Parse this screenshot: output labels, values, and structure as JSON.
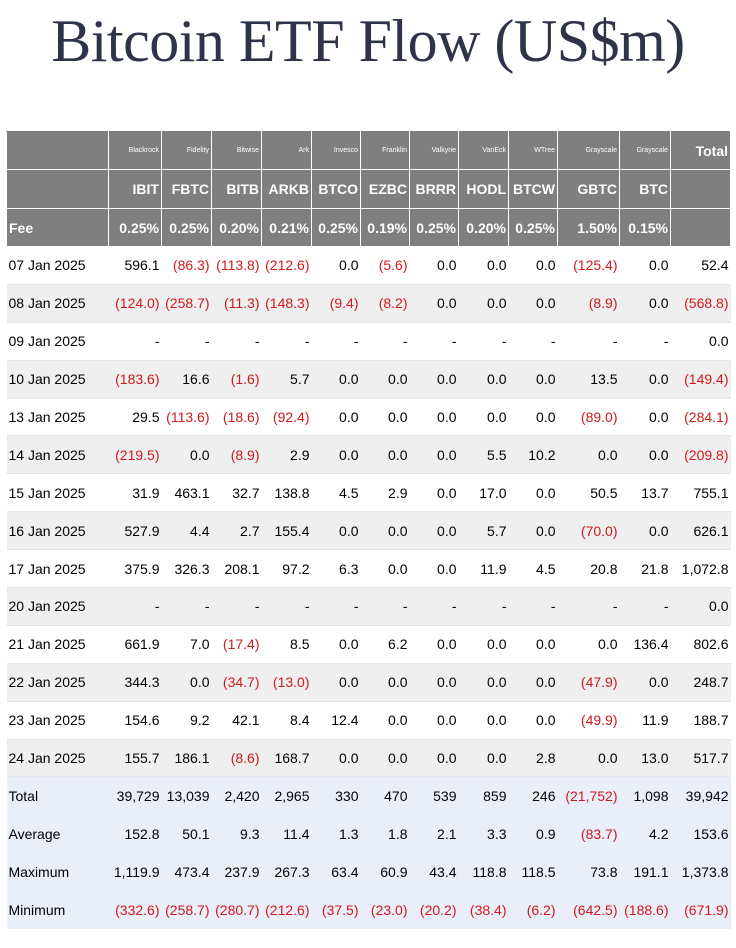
{
  "title": "Bitcoin ETF Flow (US$m)",
  "colors": {
    "header_bg": "#7f7f7f",
    "negative": "#d0191d",
    "summary_bg": "#e9eef8",
    "alt_row": "#efefef"
  },
  "header": {
    "issuers": [
      "Blackrock",
      "Fidelity",
      "Bitwise",
      "Ark",
      "Invesco",
      "Franklin",
      "Valkyrie",
      "VanEck",
      "WTree",
      "Grayscale",
      "Grayscale"
    ],
    "total_label": "Total",
    "tickers": [
      "IBIT",
      "FBTC",
      "BITB",
      "ARKB",
      "BTCO",
      "EZBC",
      "BRRR",
      "HODL",
      "BTCW",
      "GBTC",
      "BTC"
    ],
    "fee_label": "Fee",
    "fees": [
      "0.25%",
      "0.25%",
      "0.20%",
      "0.21%",
      "0.25%",
      "0.19%",
      "0.25%",
      "0.20%",
      "0.25%",
      "1.50%",
      "0.15%"
    ]
  },
  "rows": [
    {
      "date": "07 Jan 2025",
      "values": [
        "596.1",
        "(86.3)",
        "(113.8)",
        "(212.6)",
        "0.0",
        "(5.6)",
        "0.0",
        "0.0",
        "0.0",
        "(125.4)",
        "0.0"
      ],
      "total": "52.4"
    },
    {
      "date": "08 Jan 2025",
      "values": [
        "(124.0)",
        "(258.7)",
        "(11.3)",
        "(148.3)",
        "(9.4)",
        "(8.2)",
        "0.0",
        "0.0",
        "0.0",
        "(8.9)",
        "0.0"
      ],
      "total": "(568.8)"
    },
    {
      "date": "09 Jan 2025",
      "values": [
        "-",
        "-",
        "-",
        "-",
        "-",
        "-",
        "-",
        "-",
        "-",
        "-",
        "-"
      ],
      "total": "0.0"
    },
    {
      "date": "10 Jan 2025",
      "values": [
        "(183.6)",
        "16.6",
        "(1.6)",
        "5.7",
        "0.0",
        "0.0",
        "0.0",
        "0.0",
        "0.0",
        "13.5",
        "0.0"
      ],
      "total": "(149.4)"
    },
    {
      "date": "13 Jan 2025",
      "values": [
        "29.5",
        "(113.6)",
        "(18.6)",
        "(92.4)",
        "0.0",
        "0.0",
        "0.0",
        "0.0",
        "0.0",
        "(89.0)",
        "0.0"
      ],
      "total": "(284.1)"
    },
    {
      "date": "14 Jan 2025",
      "values": [
        "(219.5)",
        "0.0",
        "(8.9)",
        "2.9",
        "0.0",
        "0.0",
        "0.0",
        "5.5",
        "10.2",
        "0.0",
        "0.0"
      ],
      "total": "(209.8)"
    },
    {
      "date": "15 Jan 2025",
      "values": [
        "31.9",
        "463.1",
        "32.7",
        "138.8",
        "4.5",
        "2.9",
        "0.0",
        "17.0",
        "0.0",
        "50.5",
        "13.7"
      ],
      "total": "755.1"
    },
    {
      "date": "16 Jan 2025",
      "values": [
        "527.9",
        "4.4",
        "2.7",
        "155.4",
        "0.0",
        "0.0",
        "0.0",
        "5.7",
        "0.0",
        "(70.0)",
        "0.0"
      ],
      "total": "626.1"
    },
    {
      "date": "17 Jan 2025",
      "values": [
        "375.9",
        "326.3",
        "208.1",
        "97.2",
        "6.3",
        "0.0",
        "0.0",
        "11.9",
        "4.5",
        "20.8",
        "21.8"
      ],
      "total": "1,072.8"
    },
    {
      "date": "20 Jan 2025",
      "values": [
        "-",
        "-",
        "-",
        "-",
        "-",
        "-",
        "-",
        "-",
        "-",
        "-",
        "-"
      ],
      "total": "0.0"
    },
    {
      "date": "21 Jan 2025",
      "values": [
        "661.9",
        "7.0",
        "(17.4)",
        "8.5",
        "0.0",
        "6.2",
        "0.0",
        "0.0",
        "0.0",
        "0.0",
        "136.4"
      ],
      "total": "802.6"
    },
    {
      "date": "22 Jan 2025",
      "values": [
        "344.3",
        "0.0",
        "(34.7)",
        "(13.0)",
        "0.0",
        "0.0",
        "0.0",
        "0.0",
        "0.0",
        "(47.9)",
        "0.0"
      ],
      "total": "248.7"
    },
    {
      "date": "23 Jan 2025",
      "values": [
        "154.6",
        "9.2",
        "42.1",
        "8.4",
        "12.4",
        "0.0",
        "0.0",
        "0.0",
        "0.0",
        "(49.9)",
        "11.9"
      ],
      "total": "188.7"
    },
    {
      "date": "24 Jan 2025",
      "values": [
        "155.7",
        "186.1",
        "(8.6)",
        "168.7",
        "0.0",
        "0.0",
        "0.0",
        "0.0",
        "2.8",
        "0.0",
        "13.0"
      ],
      "total": "517.7"
    }
  ],
  "summary": [
    {
      "label": "Total",
      "values": [
        "39,729",
        "13,039",
        "2,420",
        "2,965",
        "330",
        "470",
        "539",
        "859",
        "246",
        "(21,752)",
        "1,098"
      ],
      "total": "39,942"
    },
    {
      "label": "Average",
      "values": [
        "152.8",
        "50.1",
        "9.3",
        "11.4",
        "1.3",
        "1.8",
        "2.1",
        "3.3",
        "0.9",
        "(83.7)",
        "4.2"
      ],
      "total": "153.6"
    },
    {
      "label": "Maximum",
      "values": [
        "1,119.9",
        "473.4",
        "237.9",
        "267.3",
        "63.4",
        "60.9",
        "43.4",
        "118.8",
        "118.5",
        "73.8",
        "191.1"
      ],
      "total": "1,373.8"
    },
    {
      "label": "Minimum",
      "values": [
        "(332.6)",
        "(258.7)",
        "(280.7)",
        "(212.6)",
        "(37.5)",
        "(23.0)",
        "(20.2)",
        "(38.4)",
        "(6.2)",
        "(642.5)",
        "(188.6)"
      ],
      "total": "(671.9)"
    }
  ]
}
